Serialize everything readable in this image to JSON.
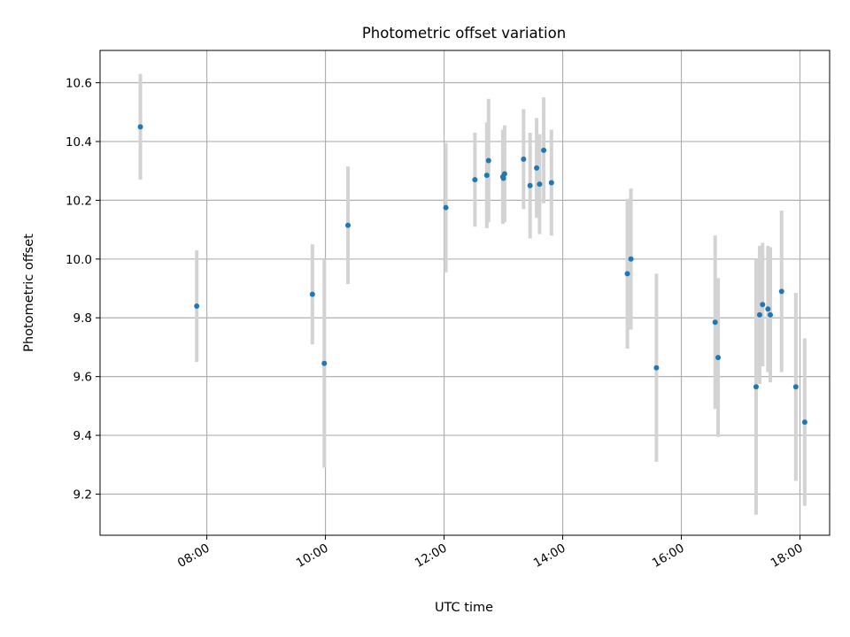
{
  "chart_data": {
    "type": "scatter",
    "title": "Photometric offset variation",
    "xlabel": "UTC time",
    "ylabel": "Photometric offset",
    "x_unit": "hours (UTC)",
    "xlim": [
      6.2,
      18.5
    ],
    "ylim": [
      9.06,
      10.71
    ],
    "grid": true,
    "x_ticks": [
      8,
      10,
      12,
      14,
      16,
      18
    ],
    "x_tick_labels": [
      "08:00",
      "10:00",
      "12:00",
      "14:00",
      "16:00",
      "18:00"
    ],
    "y_ticks": [
      9.2,
      9.4,
      9.6,
      9.8,
      10.0,
      10.2,
      10.4,
      10.6
    ],
    "y_tick_labels": [
      "9.2",
      "9.4",
      "9.6",
      "9.8",
      "10.0",
      "10.2",
      "10.4",
      "10.6"
    ],
    "point_color": "#1f77b4",
    "errorbar_color": "#d3d3d3",
    "points": [
      {
        "x": 6.88,
        "y": 10.45,
        "err": 0.18
      },
      {
        "x": 7.83,
        "y": 9.84,
        "err": 0.19
      },
      {
        "x": 9.78,
        "y": 9.88,
        "err": 0.17
      },
      {
        "x": 9.98,
        "y": 9.645,
        "err": 0.355
      },
      {
        "x": 10.38,
        "y": 10.115,
        "err": 0.2
      },
      {
        "x": 12.03,
        "y": 10.175,
        "err": 0.22
      },
      {
        "x": 12.52,
        "y": 10.27,
        "err": 0.16
      },
      {
        "x": 12.72,
        "y": 10.285,
        "err": 0.18
      },
      {
        "x": 12.75,
        "y": 10.335,
        "err": 0.21
      },
      {
        "x": 12.99,
        "y": 10.28,
        "err": 0.16
      },
      {
        "x": 13.0,
        "y": 10.275,
        "err": 0.15
      },
      {
        "x": 13.02,
        "y": 10.29,
        "err": 0.165
      },
      {
        "x": 13.34,
        "y": 10.34,
        "err": 0.17
      },
      {
        "x": 13.45,
        "y": 10.25,
        "err": 0.18
      },
      {
        "x": 13.56,
        "y": 10.31,
        "err": 0.17
      },
      {
        "x": 13.61,
        "y": 10.255,
        "err": 0.17
      },
      {
        "x": 13.68,
        "y": 10.37,
        "err": 0.18
      },
      {
        "x": 13.81,
        "y": 10.26,
        "err": 0.18
      },
      {
        "x": 15.09,
        "y": 9.95,
        "err": 0.255
      },
      {
        "x": 15.15,
        "y": 10.0,
        "err": 0.24
      },
      {
        "x": 15.58,
        "y": 9.63,
        "err": 0.32
      },
      {
        "x": 16.57,
        "y": 9.785,
        "err": 0.295
      },
      {
        "x": 16.62,
        "y": 9.665,
        "err": 0.27
      },
      {
        "x": 17.26,
        "y": 9.565,
        "err": 0.435
      },
      {
        "x": 17.32,
        "y": 9.81,
        "err": 0.235
      },
      {
        "x": 17.37,
        "y": 9.845,
        "err": 0.21
      },
      {
        "x": 17.46,
        "y": 9.83,
        "err": 0.215
      },
      {
        "x": 17.5,
        "y": 9.81,
        "err": 0.23
      },
      {
        "x": 17.69,
        "y": 9.89,
        "err": 0.275
      },
      {
        "x": 17.93,
        "y": 9.565,
        "err": 0.32
      },
      {
        "x": 18.08,
        "y": 9.445,
        "err": 0.285
      }
    ]
  }
}
